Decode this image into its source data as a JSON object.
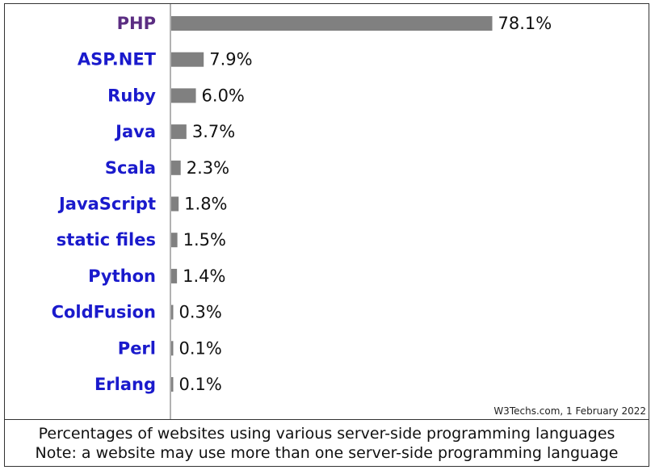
{
  "chart_data": {
    "type": "bar",
    "orientation": "horizontal",
    "categories": [
      "PHP",
      "ASP.NET",
      "Ruby",
      "Java",
      "Scala",
      "JavaScript",
      "static files",
      "Python",
      "ColdFusion",
      "Perl",
      "Erlang"
    ],
    "values": [
      78.1,
      7.9,
      6.0,
      3.7,
      2.3,
      1.8,
      1.5,
      1.4,
      0.3,
      0.1,
      0.1
    ],
    "value_labels": [
      "78.1%",
      "7.9%",
      "6.0%",
      "3.7%",
      "2.3%",
      "1.8%",
      "1.5%",
      "1.4%",
      "0.3%",
      "0.1%",
      "0.1%"
    ],
    "xlim": [
      0,
      100
    ],
    "grid": false,
    "bar_color": "#808080",
    "highlight_color": "#5b2d82",
    "label_color": "#1a1acc",
    "source": "W3Techs.com, 1 February 2022"
  },
  "caption": {
    "line1": "Percentages of websites using various server-side programming languages",
    "line2": "Note: a website may use more than one server-side programming language"
  }
}
